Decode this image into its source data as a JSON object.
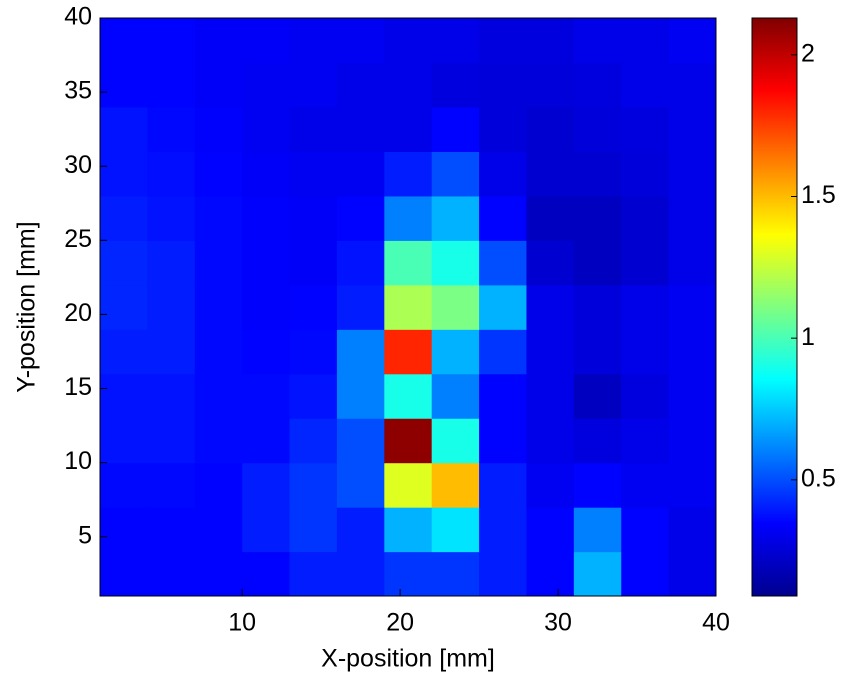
{
  "chart_data": {
    "type": "heatmap",
    "x_label": "X-position [mm]",
    "y_label": "Y-position [mm]",
    "xlim": [
      1,
      40
    ],
    "ylim": [
      1,
      40
    ],
    "xticks": [
      10,
      20,
      30,
      40
    ],
    "yticks": [
      5,
      10,
      15,
      20,
      25,
      30,
      35,
      40
    ],
    "x": [
      2.5,
      5.5,
      8.5,
      11.5,
      14.5,
      17.5,
      20.5,
      23.5,
      26.5,
      29.5,
      32.5,
      35.5,
      38.5
    ],
    "y": [
      2.5,
      5.5,
      8.5,
      11.5,
      14.5,
      17.5,
      20.5,
      23.5,
      26.5,
      29.5,
      32.5,
      35.5,
      38.5
    ],
    "z": [
      [
        0.35,
        0.35,
        0.35,
        0.35,
        0.4,
        0.4,
        0.45,
        0.45,
        0.4,
        0.35,
        0.7,
        0.35,
        0.3
      ],
      [
        0.35,
        0.35,
        0.35,
        0.4,
        0.45,
        0.4,
        0.7,
        0.8,
        0.4,
        0.35,
        0.6,
        0.35,
        0.3
      ],
      [
        0.36,
        0.36,
        0.35,
        0.4,
        0.45,
        0.5,
        1.3,
        1.5,
        0.4,
        0.32,
        0.35,
        0.32,
        0.32
      ],
      [
        0.38,
        0.38,
        0.36,
        0.36,
        0.42,
        0.5,
        2.1,
        0.9,
        0.35,
        0.3,
        0.28,
        0.3,
        0.32
      ],
      [
        0.38,
        0.38,
        0.36,
        0.36,
        0.38,
        0.6,
        0.9,
        0.6,
        0.35,
        0.3,
        0.22,
        0.28,
        0.32
      ],
      [
        0.4,
        0.4,
        0.36,
        0.35,
        0.36,
        0.6,
        1.8,
        0.7,
        0.45,
        0.3,
        0.27,
        0.3,
        0.32
      ],
      [
        0.42,
        0.4,
        0.36,
        0.34,
        0.35,
        0.4,
        1.2,
        1.1,
        0.7,
        0.3,
        0.27,
        0.3,
        0.32
      ],
      [
        0.42,
        0.4,
        0.36,
        0.34,
        0.33,
        0.38,
        1.0,
        0.9,
        0.5,
        0.25,
        0.22,
        0.25,
        0.3
      ],
      [
        0.4,
        0.38,
        0.36,
        0.34,
        0.33,
        0.35,
        0.6,
        0.7,
        0.35,
        0.22,
        0.22,
        0.25,
        0.3
      ],
      [
        0.38,
        0.37,
        0.35,
        0.33,
        0.32,
        0.32,
        0.4,
        0.5,
        0.3,
        0.25,
        0.25,
        0.27,
        0.3
      ],
      [
        0.38,
        0.36,
        0.34,
        0.32,
        0.3,
        0.3,
        0.3,
        0.35,
        0.27,
        0.25,
        0.27,
        0.28,
        0.3
      ],
      [
        0.35,
        0.35,
        0.33,
        0.32,
        0.32,
        0.3,
        0.3,
        0.28,
        0.27,
        0.27,
        0.28,
        0.3,
        0.3
      ],
      [
        0.35,
        0.35,
        0.33,
        0.33,
        0.32,
        0.32,
        0.3,
        0.3,
        0.28,
        0.28,
        0.3,
        0.3,
        0.32
      ]
    ],
    "clim": [
      0.09,
      2.13
    ],
    "cticks": [
      0.5,
      1,
      1.5,
      2
    ],
    "colormap": "jet"
  }
}
